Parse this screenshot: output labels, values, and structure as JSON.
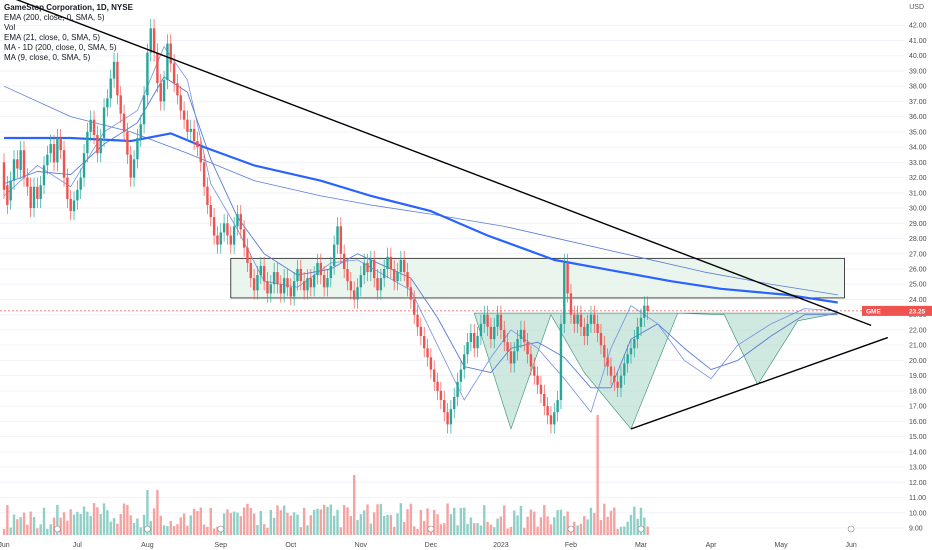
{
  "header": {
    "symbol_line": "GameStop Corporation, 1D, NYSE",
    "indicators": [
      "EMA (200, close, 0, SMA, 5)",
      "Vol",
      "EMA (21, close, 0, SMA, 5)",
      "MA - 1D (200, close, 0, SMA, 5)",
      "MA (9, close, 0, SMA, 5)"
    ],
    "currency": "USD"
  },
  "price_tag": {
    "ticker": "GME",
    "value": "23.25"
  },
  "colors": {
    "up": "#26a69a",
    "down": "#ef5350",
    "ema200": "#2962ff",
    "ma_thin": "#5b7bd6",
    "zone_fill": "#e6f3ea",
    "pattern_fill": "#a8d5c6",
    "trendline": "#000000",
    "price_line": "#ef5350"
  },
  "chart_data": {
    "type": "candlestick",
    "y_axis": {
      "range": [
        9.0,
        43.0
      ],
      "ticks": [
        "9.00",
        "10.00",
        "11.00",
        "12.00",
        "13.00",
        "14.00",
        "15.00",
        "16.00",
        "17.00",
        "18.00",
        "19.00",
        "20.00",
        "21.00",
        "22.00",
        "23.00",
        "24.00",
        "25.00",
        "26.00",
        "27.00",
        "28.00",
        "29.00",
        "30.00",
        "31.00",
        "32.00",
        "33.00",
        "34.00",
        "35.00",
        "36.00",
        "37.00",
        "38.00",
        "39.00",
        "40.00",
        "41.00",
        "42.00"
      ]
    },
    "x_axis": {
      "labels": [
        "Jun",
        "Jul",
        "Aug",
        "Sep",
        "Oct",
        "Nov",
        "Dec",
        "2023",
        "Feb",
        "Mar",
        "Apr",
        "May",
        "Jun"
      ],
      "label_positions": [
        0,
        22,
        43,
        65,
        86,
        107,
        128,
        149,
        170,
        191,
        212,
        233,
        254
      ]
    },
    "candles": [
      [
        33.0,
        31.2
      ],
      [
        31.5,
        30.2
      ],
      [
        30.5,
        31.8
      ],
      [
        31.8,
        33.2
      ],
      [
        33.2,
        32.6
      ],
      [
        32.5,
        33.8
      ],
      [
        33.8,
        32.0
      ],
      [
        32.0,
        31.4
      ],
      [
        31.4,
        30.0
      ],
      [
        30.0,
        31.4
      ],
      [
        31.4,
        30.6
      ],
      [
        30.6,
        31.5
      ],
      [
        31.5,
        32.8
      ],
      [
        32.8,
        33.5
      ],
      [
        33.6,
        34.2
      ],
      [
        34.2,
        33.0
      ],
      [
        33.0,
        34.6
      ],
      [
        34.6,
        33.8
      ],
      [
        33.8,
        32.0
      ],
      [
        32.0,
        30.6
      ],
      [
        30.6,
        29.8
      ],
      [
        29.8,
        30.5
      ],
      [
        30.5,
        31.2
      ],
      [
        31.2,
        32.0
      ],
      [
        32.0,
        33.6
      ],
      [
        33.6,
        35.0
      ],
      [
        35.0,
        35.8
      ],
      [
        35.8,
        34.8
      ],
      [
        34.8,
        33.6
      ],
      [
        33.6,
        34.6
      ],
      [
        34.6,
        36.6
      ],
      [
        36.6,
        37.2
      ],
      [
        37.2,
        38.5
      ],
      [
        38.5,
        39.6
      ],
      [
        39.6,
        37.4
      ],
      [
        37.4,
        36.2
      ],
      [
        36.2,
        35.0
      ],
      [
        35.0,
        33.5
      ],
      [
        33.5,
        32.0
      ],
      [
        32.0,
        33.2
      ],
      [
        33.2,
        34.6
      ],
      [
        34.6,
        35.5
      ],
      [
        35.5,
        37.4
      ],
      [
        37.4,
        40.2
      ],
      [
        40.2,
        41.8
      ],
      [
        41.8,
        40.2
      ],
      [
        40.2,
        38.2
      ],
      [
        38.2,
        37.0
      ],
      [
        37.0,
        38.4
      ],
      [
        38.4,
        40.8
      ],
      [
        40.8,
        39.5
      ],
      [
        39.5,
        38.2
      ],
      [
        38.2,
        37.4
      ],
      [
        37.4,
        36.4
      ],
      [
        36.4,
        35.8
      ],
      [
        35.8,
        35.0
      ],
      [
        35.0,
        35.2
      ],
      [
        35.2,
        34.4
      ],
      [
        34.4,
        34.0
      ],
      [
        34.0,
        33.0
      ],
      [
        33.0,
        31.4
      ],
      [
        31.4,
        30.2
      ],
      [
        30.2,
        29.4
      ],
      [
        29.4,
        28.2
      ],
      [
        28.2,
        27.6
      ],
      [
        27.6,
        28.4
      ],
      [
        28.4,
        29.0
      ],
      [
        29.0,
        28.2
      ],
      [
        28.2,
        27.6
      ],
      [
        27.6,
        28.8
      ],
      [
        28.8,
        29.6
      ],
      [
        29.6,
        28.6
      ],
      [
        28.6,
        27.4
      ],
      [
        27.4,
        26.4
      ],
      [
        26.4,
        25.4
      ],
      [
        25.4,
        24.6
      ],
      [
        24.6,
        25.6
      ],
      [
        25.6,
        26.2
      ],
      [
        26.2,
        25.2
      ],
      [
        25.2,
        24.4
      ],
      [
        24.4,
        25.0
      ],
      [
        25.0,
        25.8
      ],
      [
        25.8,
        25.0
      ],
      [
        25.0,
        24.4
      ],
      [
        24.4,
        25.4
      ],
      [
        25.4,
        24.8
      ],
      [
        24.8,
        24.2
      ],
      [
        24.2,
        25.2
      ],
      [
        25.2,
        26.0
      ],
      [
        26.0,
        25.2
      ],
      [
        25.2,
        24.6
      ],
      [
        24.6,
        25.4
      ],
      [
        25.4,
        24.8
      ],
      [
        24.8,
        25.6
      ],
      [
        25.6,
        26.4
      ],
      [
        26.4,
        25.6
      ],
      [
        25.6,
        24.8
      ],
      [
        24.8,
        25.4
      ],
      [
        25.4,
        26.2
      ],
      [
        26.2,
        27.6
      ],
      [
        27.6,
        28.8
      ],
      [
        28.8,
        27.0
      ],
      [
        27.0,
        26.0
      ],
      [
        26.0,
        25.2
      ],
      [
        25.2,
        24.6
      ],
      [
        24.6,
        24.0
      ],
      [
        24.0,
        24.8
      ],
      [
        24.8,
        25.6
      ],
      [
        25.6,
        26.4
      ],
      [
        26.4,
        25.8
      ],
      [
        25.8,
        26.6
      ],
      [
        26.6,
        25.4
      ],
      [
        25.4,
        24.6
      ],
      [
        24.6,
        25.4
      ],
      [
        25.4,
        26.0
      ],
      [
        26.0,
        26.8
      ],
      [
        26.8,
        26.0
      ],
      [
        26.0,
        25.2
      ],
      [
        25.2,
        25.8
      ],
      [
        25.8,
        26.6
      ],
      [
        26.6,
        25.8
      ],
      [
        25.8,
        24.8
      ],
      [
        24.8,
        24.0
      ],
      [
        24.0,
        23.0
      ],
      [
        23.0,
        22.2
      ],
      [
        22.2,
        21.6
      ],
      [
        21.6,
        20.8
      ],
      [
        20.8,
        20.2
      ],
      [
        20.2,
        19.4
      ],
      [
        19.4,
        18.6
      ],
      [
        18.6,
        18.0
      ],
      [
        18.0,
        17.4
      ],
      [
        17.4,
        16.6
      ],
      [
        16.6,
        15.8
      ],
      [
        15.8,
        16.8
      ],
      [
        16.8,
        17.6
      ],
      [
        17.6,
        18.6
      ],
      [
        18.6,
        19.4
      ],
      [
        19.4,
        20.4
      ],
      [
        20.4,
        21.2
      ],
      [
        21.2,
        21.8
      ],
      [
        21.8,
        20.8
      ],
      [
        20.8,
        21.6
      ],
      [
        21.6,
        22.4
      ],
      [
        22.4,
        23.0
      ],
      [
        23.0,
        22.2
      ],
      [
        22.2,
        21.4
      ],
      [
        21.4,
        22.2
      ],
      [
        22.2,
        23.0
      ],
      [
        23.0,
        22.0
      ],
      [
        22.0,
        21.2
      ],
      [
        21.2,
        20.6
      ],
      [
        20.6,
        19.8
      ],
      [
        19.8,
        20.6
      ],
      [
        20.6,
        21.4
      ],
      [
        21.4,
        22.0
      ],
      [
        22.0,
        21.2
      ],
      [
        21.2,
        20.4
      ],
      [
        20.4,
        19.6
      ],
      [
        19.6,
        19.0
      ],
      [
        19.0,
        18.4
      ],
      [
        18.4,
        17.8
      ],
      [
        17.8,
        17.0
      ],
      [
        17.0,
        16.4
      ],
      [
        16.4,
        15.8
      ],
      [
        15.8,
        16.6
      ],
      [
        16.6,
        17.4
      ],
      [
        17.4,
        22.4
      ],
      [
        22.4,
        26.4
      ],
      [
        26.4,
        24.4
      ],
      [
        24.4,
        23.0
      ],
      [
        23.0,
        22.4
      ],
      [
        22.4,
        23.0
      ],
      [
        23.0,
        22.2
      ],
      [
        22.2,
        21.6
      ],
      [
        21.6,
        22.4
      ],
      [
        22.4,
        23.0
      ],
      [
        23.0,
        22.4
      ],
      [
        22.4,
        21.8
      ],
      [
        21.8,
        21.0
      ],
      [
        21.0,
        20.2
      ],
      [
        20.2,
        19.6
      ],
      [
        19.6,
        19.0
      ],
      [
        19.0,
        18.6
      ],
      [
        18.6,
        18.2
      ],
      [
        18.2,
        19.0
      ],
      [
        19.0,
        19.8
      ],
      [
        19.8,
        20.4
      ],
      [
        20.4,
        20.8
      ],
      [
        20.8,
        21.4
      ],
      [
        21.4,
        22.2
      ],
      [
        22.2,
        22.8
      ],
      [
        22.8,
        23.6
      ],
      [
        23.6,
        23.25
      ]
    ],
    "ema200": [
      [
        0,
        34.6
      ],
      [
        20,
        34.6
      ],
      [
        38,
        34.4
      ],
      [
        50,
        34.9
      ],
      [
        60,
        34.0
      ],
      [
        75,
        32.8
      ],
      [
        95,
        31.8
      ],
      [
        110,
        30.8
      ],
      [
        128,
        29.8
      ],
      [
        145,
        28.2
      ],
      [
        165,
        26.6
      ],
      [
        185,
        25.8
      ],
      [
        200,
        25.2
      ],
      [
        215,
        24.7
      ],
      [
        235,
        24.3
      ],
      [
        250,
        23.8
      ]
    ],
    "ma_1d_200": [
      [
        0,
        38.0
      ],
      [
        20,
        36.0
      ],
      [
        38,
        35.0
      ],
      [
        55,
        33.6
      ],
      [
        75,
        31.8
      ],
      [
        95,
        30.8
      ],
      [
        110,
        30.2
      ],
      [
        128,
        29.6
      ],
      [
        150,
        28.8
      ],
      [
        170,
        27.8
      ],
      [
        190,
        26.8
      ],
      [
        210,
        25.8
      ],
      [
        230,
        25.0
      ],
      [
        250,
        24.3
      ]
    ],
    "ema21": [
      [
        0,
        31.6
      ],
      [
        10,
        32.4
      ],
      [
        20,
        32.2
      ],
      [
        30,
        34.2
      ],
      [
        40,
        35.6
      ],
      [
        48,
        38.6
      ],
      [
        55,
        37.6
      ],
      [
        62,
        33.2
      ],
      [
        70,
        29.4
      ],
      [
        78,
        27.0
      ],
      [
        88,
        25.6
      ],
      [
        98,
        26.0
      ],
      [
        106,
        27.0
      ],
      [
        114,
        26.2
      ],
      [
        122,
        25.4
      ],
      [
        130,
        22.8
      ],
      [
        138,
        19.6
      ],
      [
        146,
        19.2
      ],
      [
        152,
        20.8
      ],
      [
        160,
        21.2
      ],
      [
        168,
        20.2
      ],
      [
        176,
        18.2
      ],
      [
        182,
        18.2
      ],
      [
        188,
        21.4
      ],
      [
        196,
        22.4
      ],
      [
        204,
        20.8
      ],
      [
        212,
        19.4
      ],
      [
        220,
        20.0
      ],
      [
        230,
        21.6
      ],
      [
        240,
        23.0
      ],
      [
        250,
        23.0
      ]
    ],
    "ma9": [
      [
        0,
        30.8
      ],
      [
        10,
        32.8
      ],
      [
        20,
        31.4
      ],
      [
        30,
        35.0
      ],
      [
        40,
        36.4
      ],
      [
        48,
        40.6
      ],
      [
        55,
        38.4
      ],
      [
        62,
        31.6
      ],
      [
        70,
        28.6
      ],
      [
        78,
        25.2
      ],
      [
        88,
        24.8
      ],
      [
        98,
        26.4
      ],
      [
        106,
        26.6
      ],
      [
        114,
        25.6
      ],
      [
        122,
        24.6
      ],
      [
        130,
        21.0
      ],
      [
        138,
        17.4
      ],
      [
        146,
        20.2
      ],
      [
        152,
        22.0
      ],
      [
        160,
        20.8
      ],
      [
        168,
        18.8
      ],
      [
        176,
        16.6
      ],
      [
        182,
        20.8
      ],
      [
        188,
        23.6
      ],
      [
        196,
        22.4
      ],
      [
        204,
        20.0
      ],
      [
        212,
        18.8
      ],
      [
        220,
        21.0
      ],
      [
        230,
        22.4
      ],
      [
        240,
        23.4
      ],
      [
        250,
        23.25
      ]
    ],
    "resistance_zone": {
      "from_bar": 68,
      "to_bar": 252,
      "top": 26.7,
      "bottom": 24.1
    },
    "neckline": {
      "value": 23.1,
      "from_bar": 141,
      "to_bar": 250
    },
    "pattern_lows": [
      [
        141,
        23.1
      ],
      [
        152,
        15.5
      ],
      [
        164,
        23.0
      ],
      [
        174,
        19.2
      ],
      [
        188,
        15.5
      ],
      [
        202,
        23.1
      ],
      [
        216,
        23.0
      ],
      [
        226,
        18.4
      ],
      [
        238,
        22.6
      ],
      [
        250,
        23.1
      ]
    ],
    "downtrend_line": [
      [
        0,
        44.0
      ],
      [
        260,
        22.3
      ]
    ],
    "uptrend_line": [
      [
        188,
        15.5
      ],
      [
        265,
        21.5
      ]
    ],
    "volume_events": [
      16,
      43,
      65,
      128,
      170,
      191,
      254
    ]
  }
}
